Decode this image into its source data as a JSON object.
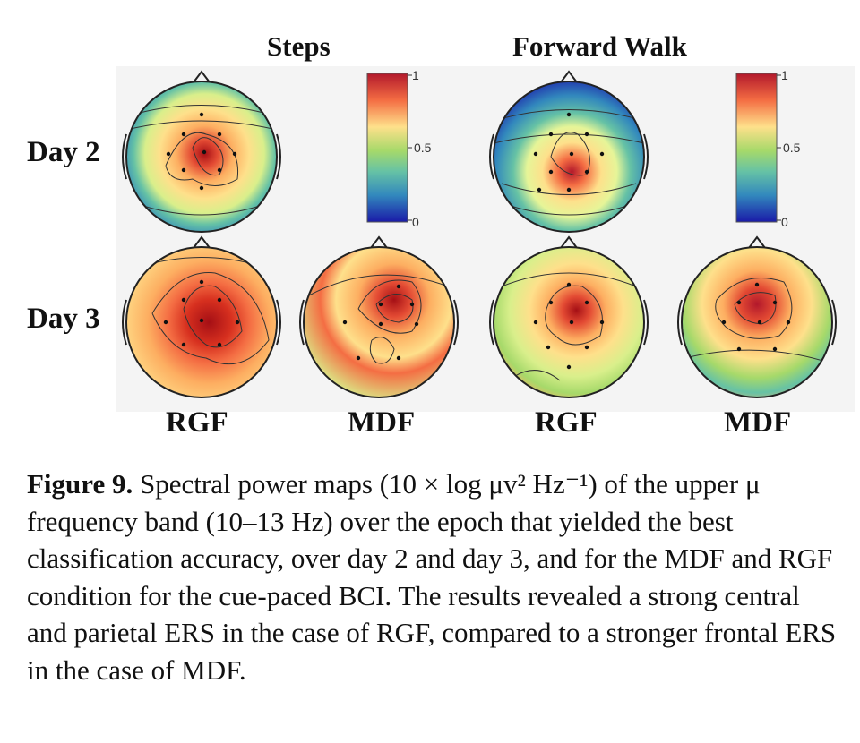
{
  "figure": {
    "panel_titles": [
      "Steps",
      "Forward Walk"
    ],
    "row_labels": [
      "Day 2",
      "Day 3"
    ],
    "column_labels": [
      "RGF",
      "MDF",
      "RGF",
      "MDF"
    ],
    "colorbar": {
      "ticks": [
        "1",
        "0.5",
        "0"
      ],
      "colors": [
        "#b2182b",
        "#f46d43",
        "#fee08b",
        "#a6d96a",
        "#66c2a5",
        "#3288bd",
        "#1a1aa8"
      ]
    }
  },
  "caption": {
    "label": "Figure 9.",
    "text": "Spectral power maps (10 × log μv² Hz⁻¹) of the upper μ frequency band (10–13 Hz) over the epoch that yielded the best classification accuracy, over day 2 and day 3, and for the MDF and RGF condition for the cue-paced BCI. The results revealed a strong central and parietal ERS in the case of RGF, compared to a stronger frontal ERS in the case of MDF."
  }
}
